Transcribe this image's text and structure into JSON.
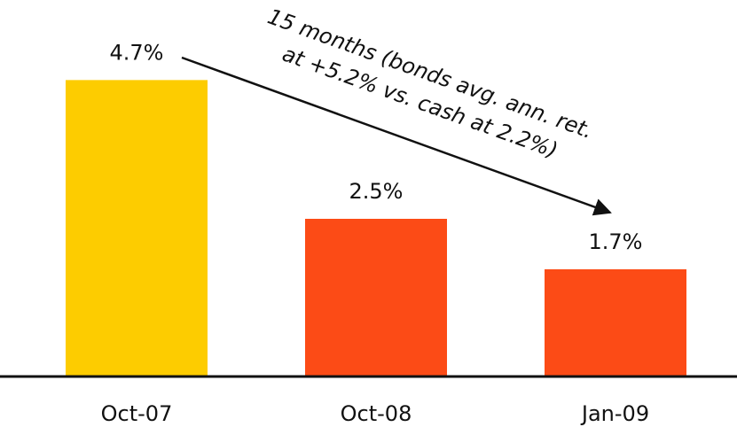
{
  "chart_data": {
    "type": "bar",
    "categories": [
      "Oct-07",
      "Oct-08",
      "Jan-09"
    ],
    "values": [
      4.7,
      2.5,
      1.7
    ],
    "value_labels": [
      "4.7%",
      "2.5%",
      "1.7%"
    ],
    "colors": [
      "#fdcc00",
      "#fc4b16",
      "#fc4b16"
    ],
    "ylim": [
      0,
      5
    ],
    "annotation": [
      "15 months (bonds avg. ann. ret.",
      "at +5.2% vs. cash at 2.2%)"
    ]
  }
}
